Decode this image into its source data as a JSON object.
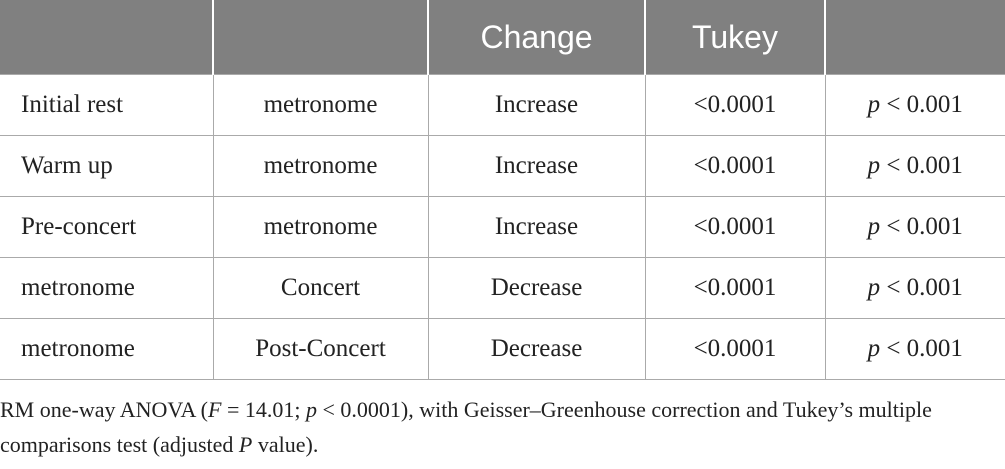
{
  "table": {
    "header": [
      "Change",
      "Tukey"
    ],
    "rows": [
      [
        "Initial rest",
        "metronome",
        "Increase",
        "<0.0001",
        "p < 0.001"
      ],
      [
        "Warm up",
        "metronome",
        "Increase",
        "<0.0001",
        "p < 0.001"
      ],
      [
        "Pre-concert",
        "metronome",
        "Increase",
        "<0.0001",
        "p < 0.001"
      ],
      [
        "metronome",
        "Concert",
        "Decrease",
        "<0.0001",
        "p < 0.001"
      ],
      [
        "metronome",
        "Post-Concert",
        "Decrease",
        "<0.0001",
        "p < 0.001"
      ]
    ]
  },
  "note": [
    "RM one-way ANOVA (",
    "F",
    " = 14.01; ",
    "p",
    " < 0.0001), with Geisser–Greenhouse correction and Tukey’s multiple comparisons test (adjusted ",
    "P",
    " value)."
  ]
}
